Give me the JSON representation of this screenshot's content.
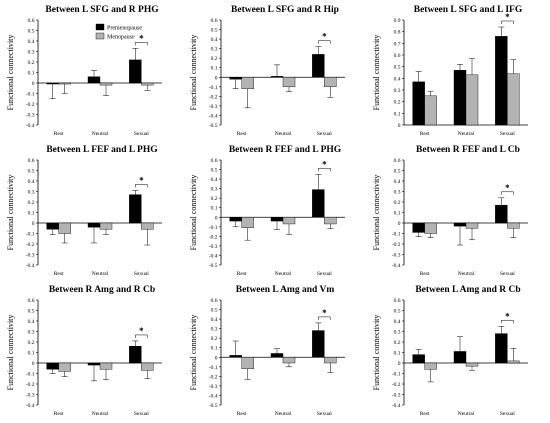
{
  "colors": {
    "premenopause": "#000000",
    "menopause": "#b3b3b3",
    "axis": "#000000"
  },
  "legend": [
    "Premenopause",
    "Menopause"
  ],
  "chart_data": [
    {
      "type": "bar",
      "title": "Between L SFG and R PHG",
      "ylabel": "Functional connectivity",
      "ylim": [
        -0.4,
        0.6
      ],
      "yticks": [
        "0.6",
        "0.5",
        "0.4",
        "0.3",
        "0.2",
        "0.1",
        "0",
        "-0.1",
        "-0.2",
        "-0.3",
        "-0.4"
      ],
      "categories": [
        "Rest",
        "Neutral",
        "Sexual"
      ],
      "series": [
        {
          "name": "Premenopause",
          "values": [
            -0.01,
            0.06,
            0.22
          ],
          "errors": [
            0.14,
            0.06,
            0.11
          ]
        },
        {
          "name": "Menopause",
          "values": [
            -0.01,
            -0.02,
            -0.02
          ],
          "errors": [
            0.09,
            0.1,
            0.05
          ]
        }
      ],
      "significance": {
        "category": "Sexual",
        "label": "*"
      }
    },
    {
      "type": "bar",
      "title": "Between L SFG and R Hip",
      "ylabel": "Functional connectivity",
      "ylim": [
        -0.5,
        0.6
      ],
      "yticks": [
        "0.6",
        "0.5",
        "0.4",
        "0.3",
        "0.2",
        "0.1",
        "0",
        "-0.1",
        "-0.2",
        "-0.3",
        "-0.4",
        "-0.5"
      ],
      "categories": [
        "Rest",
        "Neutral",
        "Sexual"
      ],
      "series": [
        {
          "name": "Premenopause",
          "values": [
            -0.02,
            0.01,
            0.24
          ],
          "errors": [
            0.1,
            0.12,
            0.08
          ]
        },
        {
          "name": "Menopause",
          "values": [
            -0.12,
            -0.1,
            -0.1
          ],
          "errors": [
            0.2,
            0.05,
            0.11
          ]
        }
      ],
      "significance": {
        "category": "Sexual",
        "label": "*"
      }
    },
    {
      "type": "bar",
      "title": "Between L SFG and L IFG",
      "ylabel": "Functional connectivity",
      "ylim": [
        0,
        0.9
      ],
      "yticks": [
        "0.9",
        "0.8",
        "0.7",
        "0.6",
        "0.5",
        "0.4",
        "0.3",
        "0.2",
        "0.1",
        "0"
      ],
      "categories": [
        "Rest",
        "Neutral",
        "Sexual"
      ],
      "series": [
        {
          "name": "Premenopause",
          "values": [
            0.37,
            0.47,
            0.76
          ],
          "errors": [
            0.09,
            0.05,
            0.08
          ]
        },
        {
          "name": "Menopause",
          "values": [
            0.25,
            0.43,
            0.44
          ],
          "errors": [
            0.04,
            0.14,
            0.12
          ]
        }
      ],
      "significance": {
        "category": "Sexual",
        "label": "*"
      }
    },
    {
      "type": "bar",
      "title": "Between L FEF and L PHG",
      "ylabel": "Functional connectivity",
      "ylim": [
        -0.4,
        0.6
      ],
      "yticks": [
        "0.6",
        "0.5",
        "0.4",
        "0.3",
        "0.2",
        "0.1",
        "0",
        "-0.1",
        "-0.2",
        "-0.3",
        "-0.4"
      ],
      "categories": [
        "Rest",
        "Neutral",
        "Sexual"
      ],
      "series": [
        {
          "name": "Premenopause",
          "values": [
            -0.06,
            -0.04,
            0.27
          ],
          "errors": [
            0.05,
            0.15,
            0.04
          ]
        },
        {
          "name": "Menopause",
          "values": [
            -0.1,
            -0.06,
            -0.06
          ],
          "errors": [
            0.09,
            0.05,
            0.15
          ]
        }
      ],
      "significance": {
        "category": "Sexual",
        "label": "*"
      }
    },
    {
      "type": "bar",
      "title": "Between R FEF and L PHG",
      "ylabel": "Functional connectivity",
      "ylim": [
        -0.5,
        0.6
      ],
      "yticks": [
        "0.6",
        "0.5",
        "0.4",
        "0.3",
        "0.2",
        "0.1",
        "0",
        "-0.1",
        "-0.2",
        "-0.3",
        "-0.4",
        "-0.5"
      ],
      "categories": [
        "Rest",
        "Neutral",
        "Sexual"
      ],
      "series": [
        {
          "name": "Premenopause",
          "values": [
            -0.04,
            -0.04,
            0.29
          ],
          "errors": [
            0.06,
            0.09,
            0.16
          ]
        },
        {
          "name": "Menopause",
          "values": [
            -0.11,
            -0.07,
            -0.07
          ],
          "errors": [
            0.13,
            0.11,
            0.05
          ]
        }
      ],
      "significance": {
        "category": "Sexual",
        "label": "*"
      }
    },
    {
      "type": "bar",
      "title": "Between R FEF and L Cb",
      "ylabel": "Functional connectivity",
      "ylim": [
        -0.4,
        0.6
      ],
      "yticks": [
        "0.6",
        "0.5",
        "0.4",
        "0.3",
        "0.2",
        "0.1",
        "0",
        "-0.1",
        "-0.2",
        "-0.3",
        "-0.4"
      ],
      "categories": [
        "Rest",
        "Neutral",
        "Sexual"
      ],
      "series": [
        {
          "name": "Premenopause",
          "values": [
            -0.09,
            -0.03,
            0.17
          ],
          "errors": [
            0.04,
            0.18,
            0.07
          ]
        },
        {
          "name": "Menopause",
          "values": [
            -0.1,
            -0.05,
            -0.05
          ],
          "errors": [
            0.04,
            0.11,
            0.09
          ]
        }
      ],
      "significance": {
        "category": "Sexual",
        "label": "*"
      }
    },
    {
      "type": "bar",
      "title": "Between R Amg and R Cb",
      "ylabel": "Functional connectivity",
      "ylim": [
        -0.4,
        0.6
      ],
      "yticks": [
        "0.6",
        "0.5",
        "0.4",
        "0.3",
        "0.2",
        "0.1",
        "0",
        "-0.1",
        "-0.2",
        "-0.3",
        "-0.4"
      ],
      "categories": [
        "Rest",
        "Neutral",
        "Sexual"
      ],
      "series": [
        {
          "name": "Premenopause",
          "values": [
            -0.06,
            -0.02,
            0.16
          ],
          "errors": [
            0.04,
            0.15,
            0.05
          ]
        },
        {
          "name": "Menopause",
          "values": [
            -0.08,
            -0.06,
            -0.07
          ],
          "errors": [
            0.05,
            0.1,
            0.08
          ]
        }
      ],
      "significance": {
        "category": "Sexual",
        "label": "*"
      }
    },
    {
      "type": "bar",
      "title": "Between L Amg and Vm",
      "ylabel": "Functional connectivity",
      "ylim": [
        -0.5,
        0.6
      ],
      "yticks": [
        "0.6",
        "0.5",
        "0.4",
        "0.3",
        "0.2",
        "0.1",
        "0",
        "-0.1",
        "-0.2",
        "-0.3",
        "-0.4",
        "-0.5"
      ],
      "categories": [
        "Rest",
        "Neutral",
        "Sexual"
      ],
      "series": [
        {
          "name": "Premenopause",
          "values": [
            0.02,
            0.04,
            0.28
          ],
          "errors": [
            0.15,
            0.05,
            0.08
          ]
        },
        {
          "name": "Menopause",
          "values": [
            -0.12,
            -0.06,
            -0.06
          ],
          "errors": [
            0.11,
            0.04,
            0.1
          ]
        }
      ],
      "significance": {
        "category": "Sexual",
        "label": "*"
      }
    },
    {
      "type": "bar",
      "title": "Between L Amg and R Cb",
      "ylabel": "Functional connectivity",
      "ylim": [
        -0.4,
        0.6
      ],
      "yticks": [
        "0.6",
        "0.5",
        "0.4",
        "0.3",
        "0.2",
        "0.1",
        "0",
        "-0.1",
        "-0.2",
        "-0.3",
        "-0.4"
      ],
      "categories": [
        "Rest",
        "Neutral",
        "Sexual"
      ],
      "series": [
        {
          "name": "Premenopause",
          "values": [
            0.08,
            0.11,
            0.28
          ],
          "errors": [
            0.05,
            0.14,
            0.07
          ]
        },
        {
          "name": "Menopause",
          "values": [
            -0.06,
            -0.03,
            0.02
          ],
          "errors": [
            0.12,
            0.04,
            0.12
          ]
        }
      ],
      "significance": {
        "category": "Sexual",
        "label": "*"
      }
    }
  ]
}
